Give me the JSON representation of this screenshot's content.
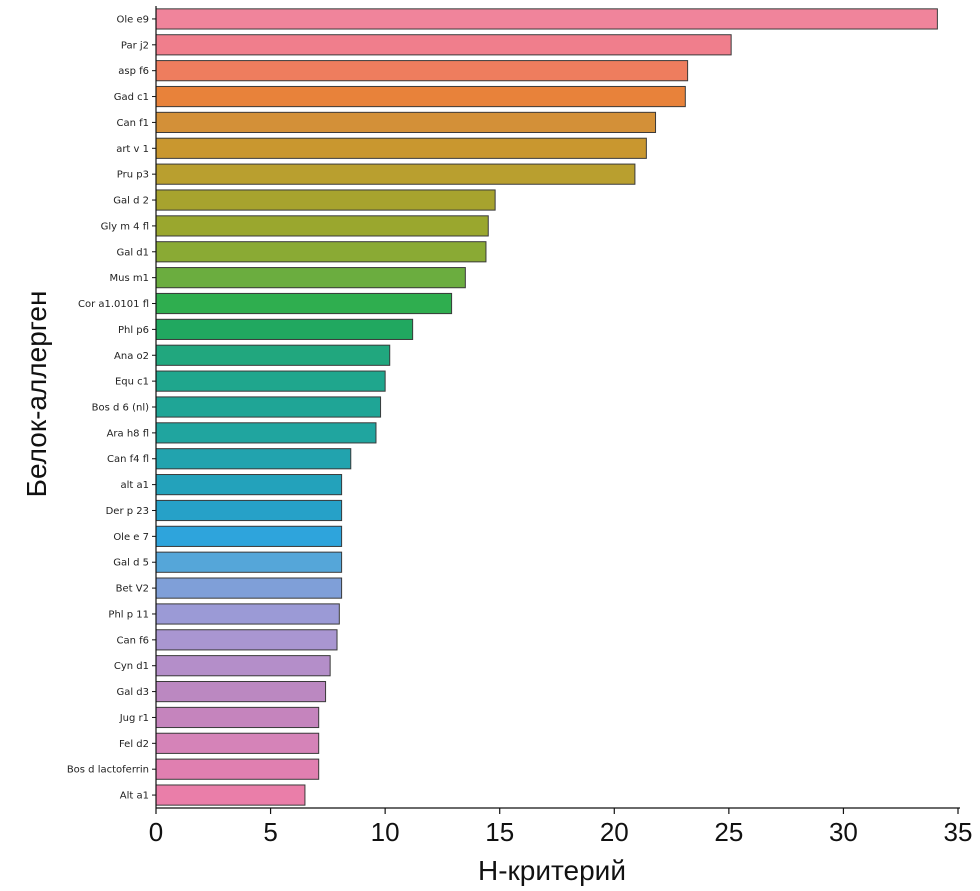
{
  "chart_data": {
    "type": "bar",
    "orientation": "horizontal",
    "xlabel": "H-критерий",
    "ylabel": "Белок-аллерген",
    "xlim": [
      0,
      35
    ],
    "xticks": [
      0,
      5,
      10,
      15,
      20,
      25,
      30,
      35
    ],
    "grid": false,
    "categories": [
      "Ole e9",
      "Par j2",
      "asp f6",
      "Gad c1",
      "Can f1",
      "art v 1",
      "Pru p3",
      "Gal d 2",
      "Gly m 4 fl",
      "Gal d1",
      "Mus m1",
      "Cor a1.0101 fl",
      "Phl p6",
      "Ana o2",
      "Equ c1",
      "Bos d 6 (nl)",
      "Ara h8 fl",
      "Can f4 fl",
      "alt a1",
      "Der p 23",
      "Ole e 7",
      "Gal d 5",
      "Bet V2",
      "Phl p 11",
      "Can f6",
      "Cyn d1",
      "Gal d3",
      "Jug r1",
      "Fel d2",
      "Bos d lactoferrin",
      "Alt a1"
    ],
    "values": [
      34.1,
      25.1,
      23.2,
      23.1,
      21.8,
      21.4,
      20.9,
      14.8,
      14.5,
      14.4,
      13.5,
      12.9,
      11.2,
      10.2,
      10.0,
      9.8,
      9.6,
      8.5,
      8.1,
      8.1,
      8.1,
      8.1,
      8.1,
      8.0,
      7.9,
      7.6,
      7.4,
      7.1,
      7.1,
      7.1,
      6.5
    ],
    "colors": [
      "#f0849b",
      "#f07e8c",
      "#ee7d5e",
      "#e8823a",
      "#d39038",
      "#c9972f",
      "#b99f2f",
      "#a7a32e",
      "#9aa72e",
      "#8aaa34",
      "#6bad3f",
      "#2fae4f",
      "#21a860",
      "#21a77e",
      "#1fa68d",
      "#1fa596",
      "#20a59f",
      "#22a3ae",
      "#23a2bb",
      "#26a1c8",
      "#2ea4dc",
      "#55a6d9",
      "#7f9fd8",
      "#9b9ad6",
      "#a996d1",
      "#b48ec9",
      "#bb88c1",
      "#c584bd",
      "#d583b8",
      "#e07fb0",
      "#ea7ea9"
    ]
  }
}
